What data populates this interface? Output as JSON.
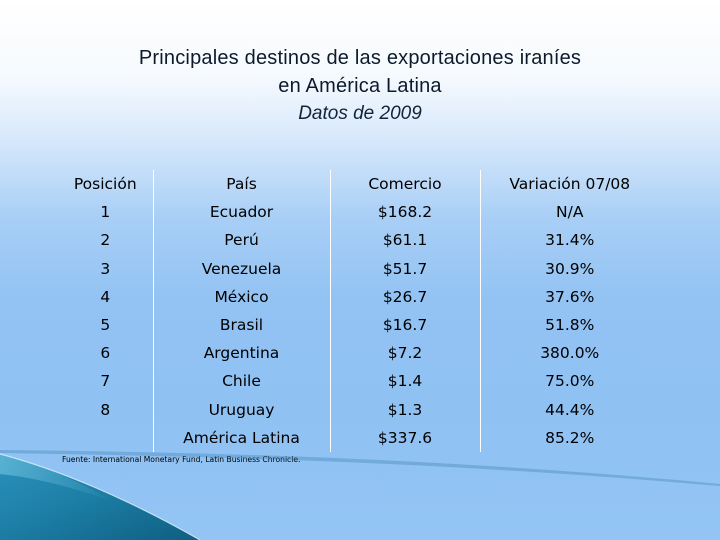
{
  "slide": {
    "title_line1": "Principales destinos de las exportaciones iraníes",
    "title_line2": "en América Latina",
    "subtitle": "Datos de 2009"
  },
  "table": {
    "headers": [
      "Posición",
      "País",
      "Comercio",
      "Variación 07/08"
    ],
    "rows": [
      [
        "1",
        "Ecuador",
        "$168.2",
        "N/A"
      ],
      [
        "2",
        "Perú",
        "$61.1",
        "31.4%"
      ],
      [
        "3",
        "Venezuela",
        "$51.7",
        "30.9%"
      ],
      [
        "4",
        "México",
        "$26.7",
        "37.6%"
      ],
      [
        "5",
        "Brasil",
        "$16.7",
        "51.8%"
      ],
      [
        "6",
        "Argentina",
        "$7.2",
        "380.0%"
      ],
      [
        "7",
        "Chile",
        "$1.4",
        "75.0%"
      ],
      [
        "8",
        "Uruguay",
        "$1.3",
        "44.4%"
      ],
      [
        "",
        "América Latina",
        "$337.6",
        "85.2%"
      ]
    ]
  },
  "source": "Fuente: International Monetary Fund, Latin Business Chronicle.",
  "colors": {
    "background_top": "#ffffff",
    "background_bottom": "#93c4f4",
    "swoosh": "#1d7fa6"
  }
}
